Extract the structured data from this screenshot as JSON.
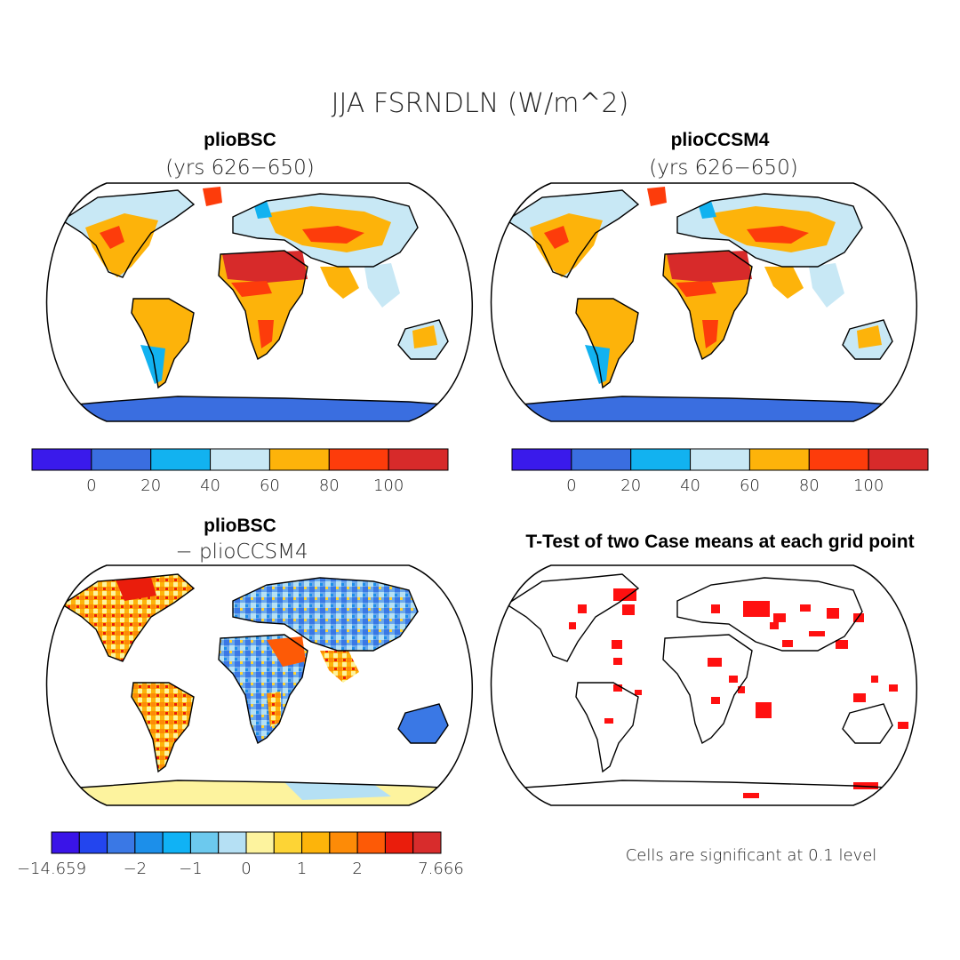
{
  "main_title": "JJA FSRNDLN (W/m^2)",
  "panels": [
    {
      "id": "top-left",
      "title_bold": "plioBSC",
      "subtitle": "(yrs 626−650)"
    },
    {
      "id": "top-right",
      "title_bold": "plioCCSM4",
      "subtitle": "(yrs 626−650)"
    },
    {
      "id": "bottom-left",
      "title_bold": "plioBSC",
      "subtitle": "− plioCCSM4"
    },
    {
      "id": "bottom-right",
      "title_bold": "T-Test of two Case means at each grid point",
      "subtitle": ""
    }
  ],
  "colorbar_top": {
    "colors": [
      "#3a1aeb",
      "#3a6ee0",
      "#12b2f0",
      "#c8e8f5",
      "#fdb30a",
      "#fd3c0b",
      "#d72a2a"
    ],
    "labels": [
      "0",
      "20",
      "40",
      "60",
      "80",
      "100"
    ]
  },
  "colorbar_diff": {
    "colors": [
      "#3a14e8",
      "#2345ee",
      "#3a78e5",
      "#1c8fea",
      "#10b2f5",
      "#6cc9ee",
      "#b5e0f4",
      "#fdf39e",
      "#fdd435",
      "#fdb40a",
      "#fd8b07",
      "#fd5a06",
      "#ea1d0c",
      "#d82c2c"
    ],
    "labels": [
      "−14.659",
      "−2",
      "−1",
      "0",
      "1",
      "2",
      "7.666"
    ]
  },
  "significance_note": "Cells are significant at 0.1 level",
  "palette": {
    "ocean": "#ffffff",
    "coast": "#000000",
    "sig_cells": "#ff1010"
  }
}
